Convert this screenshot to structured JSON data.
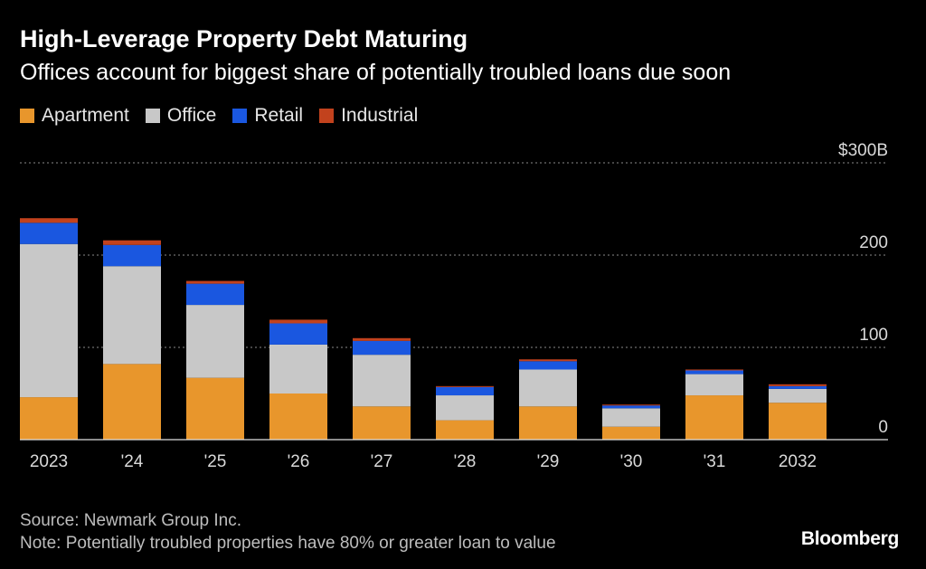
{
  "header": {
    "title": "High-Leverage Property Debt Maturing",
    "subtitle": "Offices account for biggest share of potentially troubled loans due soon"
  },
  "legend": [
    {
      "label": "Apartment",
      "color": "#e8962c"
    },
    {
      "label": "Office",
      "color": "#c8c8c8"
    },
    {
      "label": "Retail",
      "color": "#1a57e0"
    },
    {
      "label": "Industrial",
      "color": "#c2421d"
    }
  ],
  "footer": {
    "source": "Source: Newmark Group Inc.",
    "note": "Note: Potentially troubled properties have 80% or greater loan to value",
    "brand": "Bloomberg"
  },
  "chart_data": {
    "type": "bar",
    "stacked": true,
    "title": "High-Leverage Property Debt Maturing",
    "subtitle": "Offices account for biggest share of potentially troubled loans due soon",
    "xlabel": "",
    "ylabel": "",
    "categories": [
      "2023",
      "'24",
      "'25",
      "'26",
      "'27",
      "'28",
      "'29",
      "'30",
      "'31",
      "2032"
    ],
    "series": [
      {
        "name": "Apartment",
        "color": "#e8962c",
        "values": [
          46,
          82,
          67,
          50,
          36,
          21,
          36,
          14,
          48,
          40
        ]
      },
      {
        "name": "Office",
        "color": "#c8c8c8",
        "values": [
          166,
          106,
          79,
          53,
          56,
          27,
          40,
          20,
          23,
          15
        ]
      },
      {
        "name": "Retail",
        "color": "#1a57e0",
        "values": [
          23,
          23,
          23,
          23,
          15,
          9,
          9,
          3,
          4,
          3
        ]
      },
      {
        "name": "Industrial",
        "color": "#c2421d",
        "values": [
          5,
          5,
          3,
          4,
          3,
          1,
          2,
          1,
          1,
          2
        ]
      }
    ],
    "ylim": [
      0,
      300
    ],
    "yticks": [
      0,
      100,
      200,
      300
    ],
    "ytick_labels": [
      "0",
      "100",
      "200",
      "$300B"
    ],
    "grid": true,
    "legend_position": "top-left"
  }
}
